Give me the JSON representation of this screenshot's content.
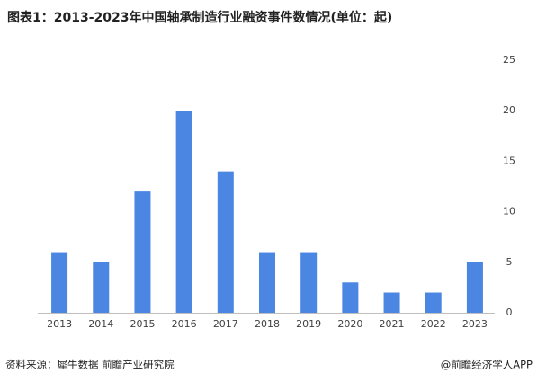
{
  "chart_data": {
    "type": "bar",
    "title": "图表1：2013-2023年中国轴承制造行业融资事件数情况(单位：起)",
    "categories": [
      "2013",
      "2014",
      "2015",
      "2016",
      "2017",
      "2018",
      "2019",
      "2020",
      "2021",
      "2022",
      "2023"
    ],
    "values": [
      6,
      5,
      12,
      20,
      14,
      6,
      6,
      3,
      2,
      2,
      5
    ],
    "color": "#4a86e2",
    "ylim": [
      0,
      25
    ],
    "yticks": [
      0,
      5,
      10,
      15,
      20,
      25
    ],
    "grid": false,
    "source": "资料来源：犀牛数据 前瞻产业研究院",
    "credit": "@前瞻经济学人APP"
  }
}
